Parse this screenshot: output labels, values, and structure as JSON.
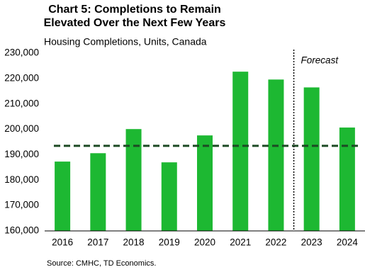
{
  "chart_data": {
    "type": "bar",
    "title": "Chart 5: Completions to Remain Elevated Over the Next Few Years",
    "subtitle": "Housing Completions, Units, Canada",
    "source": "Source:  CMHC,  TD Economics.",
    "categories": [
      "2016",
      "2017",
      "2018",
      "2019",
      "2020",
      "2021",
      "2022",
      "2023",
      "2024"
    ],
    "values": [
      187300,
      190600,
      200100,
      187000,
      197600,
      222700,
      219600,
      216500,
      200700
    ],
    "color": "#1db832",
    "ylim": [
      160000,
      230000
    ],
    "yticks": [
      {
        "value": 160000,
        "label": "160,000"
      },
      {
        "value": 170000,
        "label": "170,000"
      },
      {
        "value": 180000,
        "label": "180,000"
      },
      {
        "value": 190000,
        "label": "190,000"
      },
      {
        "value": 200000,
        "label": "200,000"
      },
      {
        "value": 210000,
        "label": "210,000"
      },
      {
        "value": 220000,
        "label": "220,000"
      },
      {
        "value": 230000,
        "label": "230,000"
      }
    ],
    "reference_line": {
      "value": 193500,
      "color": "#1d4a24"
    },
    "forecast": {
      "label": "Forecast",
      "start": "2023"
    }
  }
}
